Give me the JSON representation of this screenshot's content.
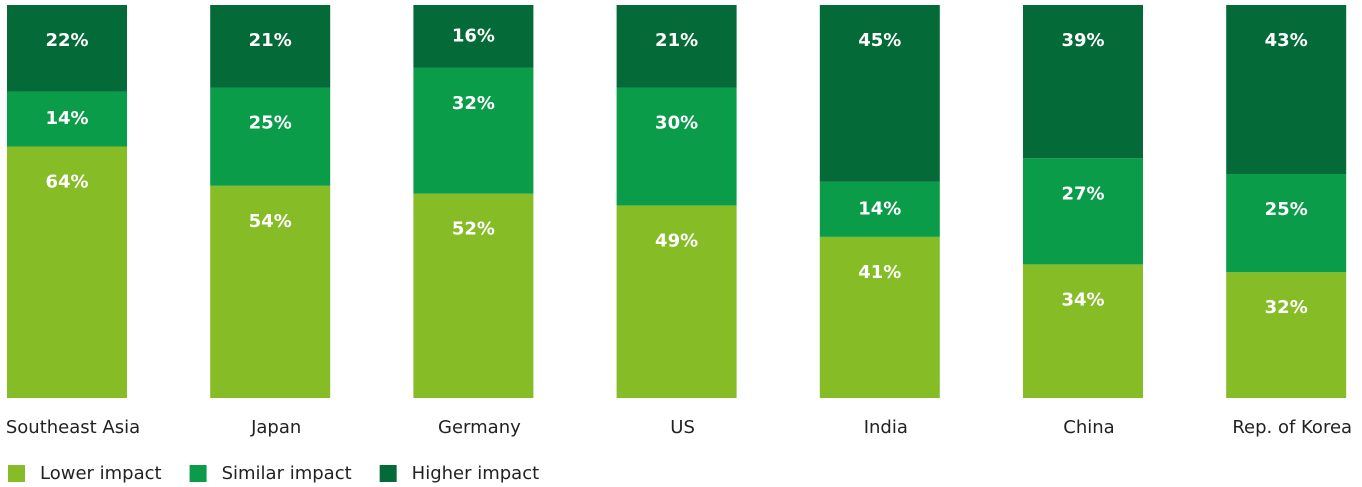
{
  "chart_data": {
    "type": "bar",
    "stacked": true,
    "categories": [
      "Southeast Asia",
      "Japan",
      "Germany",
      "US",
      "India",
      "China",
      "Rep. of Korea"
    ],
    "series": [
      {
        "name": "Lower impact",
        "color": "#86bc25",
        "values": [
          64,
          54,
          52,
          49,
          41,
          34,
          32
        ],
        "value_labels": [
          "64%",
          "54%",
          "52%",
          "49%",
          "41%",
          "34%",
          "32%"
        ]
      },
      {
        "name": "Similar impact",
        "color": "#0b9c4a",
        "values": [
          14,
          25,
          32,
          30,
          14,
          27,
          25
        ],
        "value_labels": [
          "14%",
          "25%",
          "32%",
          "30%",
          "14%",
          "27%",
          "25%"
        ]
      },
      {
        "name": "Higher impact",
        "color": "#046a38",
        "values": [
          22,
          21,
          16,
          21,
          45,
          39,
          43
        ],
        "value_labels": [
          "22%",
          "21%",
          "16%",
          "21%",
          "45%",
          "39%",
          "43%"
        ]
      }
    ],
    "legend": "bottom-left"
  }
}
